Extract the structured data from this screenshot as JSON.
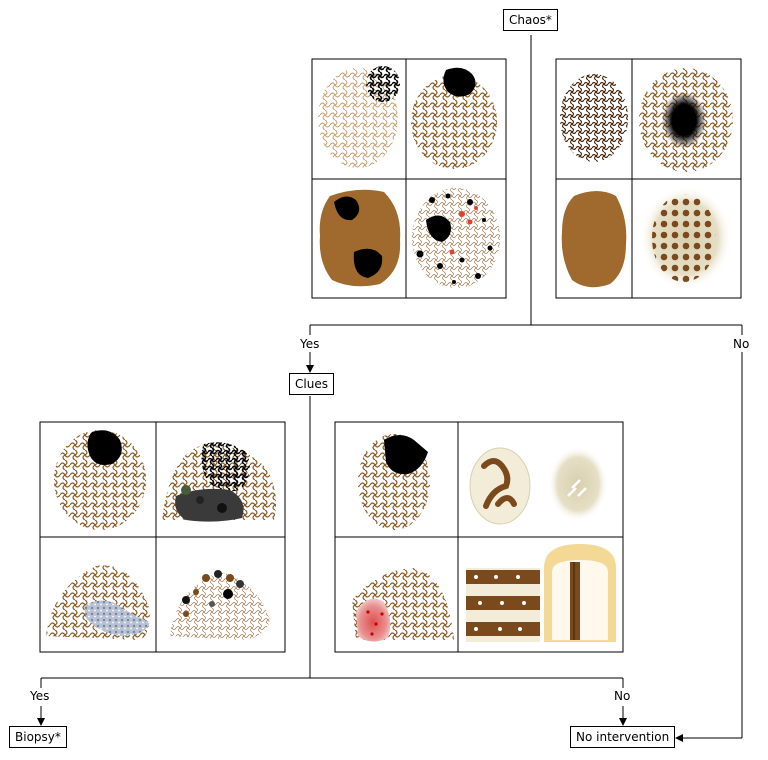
{
  "nodes": {
    "chaos": "Chaos*",
    "clues": "Clues",
    "biopsy": "Biopsy*",
    "no_intervention": "No intervention"
  },
  "edge_labels": {
    "chaos_yes": "Yes",
    "chaos_no": "No",
    "clues_yes": "Yes",
    "clues_no": "No"
  },
  "colors": {
    "brown": "#8a5a24",
    "light_brown": "#c8a070",
    "dark": "#000000",
    "tan_fill": "#a0692e",
    "red": "#e04030",
    "beige": "#d8cfae",
    "pale_yellow": "#f3d896",
    "grey_blue": "#9aa6bd"
  }
}
